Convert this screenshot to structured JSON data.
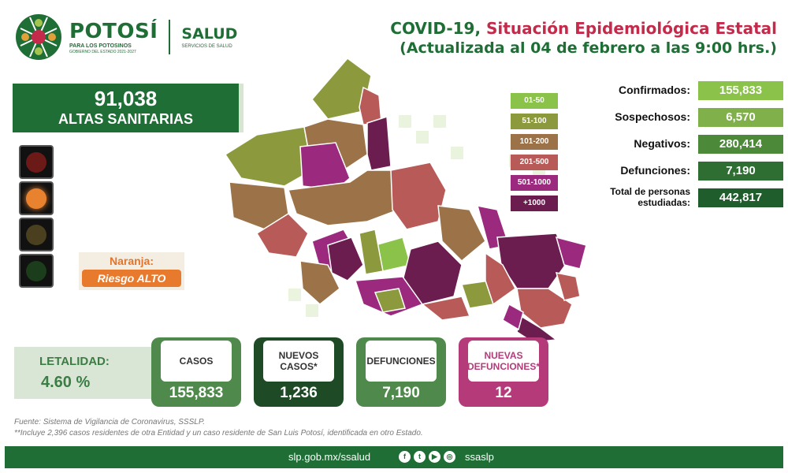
{
  "header": {
    "brand_name": "POTOSÍ",
    "brand_subtitle": "PARA LOS POTOSINOS",
    "brand_gov": "GOBIERNO DEL ESTADO 2021-2027",
    "salud_name": "SALUD",
    "salud_sub": "SERVICIOS DE SALUD",
    "title_prefix": "COVID-19,",
    "title_main": "Situación Epidemiológica Estatal",
    "title_updated": "(Actualizada al 04 de febrero a las 9:00 hrs.)"
  },
  "altas": {
    "value": "91,038",
    "label": "ALTAS SANITARIAS"
  },
  "risk": {
    "label": "Naranja:",
    "level": "Riesgo ALTO"
  },
  "legend": [
    {
      "label": "01-50",
      "color": "#8ac24a"
    },
    {
      "label": "51-100",
      "color": "#8c9a3d"
    },
    {
      "label": "101-200",
      "color": "#9c7248"
    },
    {
      "label": "201-500",
      "color": "#b85a58"
    },
    {
      "label": "501-1000",
      "color": "#9b2a7f"
    },
    {
      "label": "+1000",
      "color": "#6b1d4f"
    }
  ],
  "stats": [
    {
      "label": "Confirmados:",
      "value": "155,833",
      "color": "#8ac24a"
    },
    {
      "label": "Sospechosos:",
      "value": "6,570",
      "color": "#7fb04a"
    },
    {
      "label": "Negativos:",
      "value": "280,414",
      "color": "#4c8a3a"
    },
    {
      "label": "Defunciones:",
      "value": "7,190",
      "color": "#2f6e32"
    },
    {
      "label": "Total de personas estudiadas:",
      "value": "442,817",
      "color": "#1f5e2c"
    }
  ],
  "letalidad": {
    "label": "LETALIDAD:",
    "value": "4.60 %"
  },
  "cards": [
    {
      "label": "CASOS",
      "value": "155,833",
      "color": "#4f8a4c"
    },
    {
      "label": "NUEVOS CASOS*",
      "value": "1,236",
      "color": "#1f4a26"
    },
    {
      "label": "DEFUNCIONES",
      "value": "7,190",
      "color": "#4f8a4c"
    },
    {
      "label": "NUEVAS DEFUNCIONES*",
      "value": "12",
      "color": "#b43a7a"
    }
  ],
  "footer": {
    "source": "Fuente: Sistema de Vigilancia de Coronavirus, SSSLP.",
    "note": "**Incluye 2,396 casos residentes de otra Entidad y un caso residente de San Luis Potosí, identificada en otro Estado.",
    "url": "slp.gob.mx/ssalud",
    "handle": "ssaslp",
    "social_icons": [
      "facebook-icon",
      "twitter-icon",
      "youtube-icon",
      "instagram-icon"
    ]
  },
  "traffic_light": {
    "active": "orange"
  }
}
